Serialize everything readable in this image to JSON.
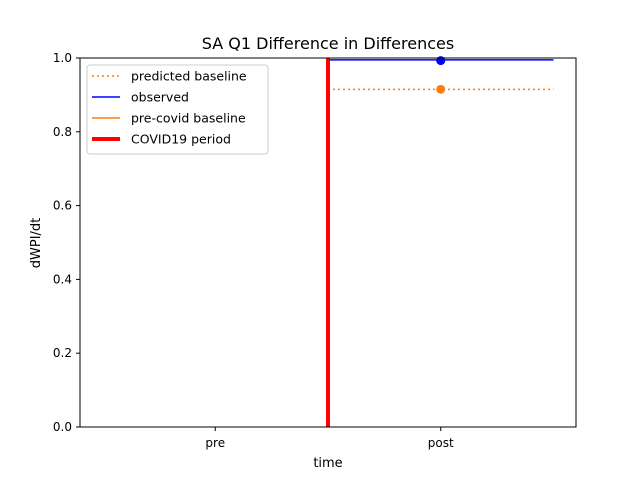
{
  "chart_data": {
    "type": "line",
    "title": "SA Q1 Difference in Differences",
    "xlabel": "time",
    "ylabel": "dWPI/dt",
    "categories": [
      "pre",
      "post"
    ],
    "ylim": [
      0.0,
      1.0
    ],
    "yticks": [
      "0.0",
      "0.2",
      "0.4",
      "0.6",
      "0.8",
      "1.0"
    ],
    "grid": false,
    "legend_position": "upper-left",
    "series": [
      {
        "name": "predicted baseline",
        "style": "dotted",
        "color": "#ff7f0e",
        "x_start": 0.5,
        "x_end": 1.5,
        "value": 0.915,
        "marker_x": 1,
        "marker_value": 0.915
      },
      {
        "name": "observed",
        "style": "solid",
        "color": "#0000ff",
        "x_start": 0.5,
        "x_end": 1.5,
        "value": 0.995,
        "marker_x": 1,
        "marker_value": 0.993
      },
      {
        "name": "pre-covid baseline",
        "style": "solid",
        "color": "#ff7f0e"
      },
      {
        "name": "COVID19 period",
        "style": "solid-thick",
        "color": "#ff0000",
        "x": 0.5
      }
    ],
    "xlim": [
      -0.6,
      1.6
    ]
  }
}
